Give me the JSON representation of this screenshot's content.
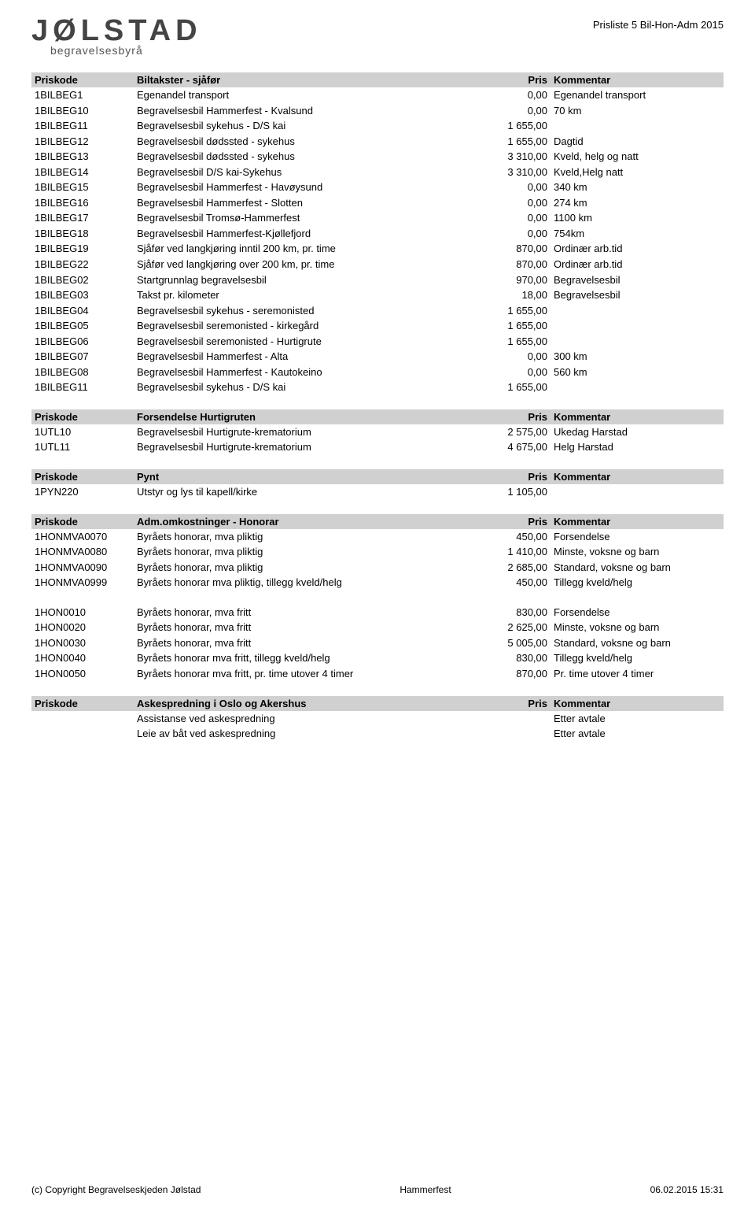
{
  "doc_title": "Prisliste 5 Bil-Hon-Adm 2015",
  "logo": {
    "word": "JØLSTAD",
    "sub": "begravelsesbyrå"
  },
  "columns": {
    "code": "Priskode",
    "price": "Pris",
    "comment": "Kommentar"
  },
  "sections": [
    {
      "title": "Biltakster - sjåfør",
      "rows": [
        {
          "code": "1BILBEG1",
          "desc": "Egenandel transport",
          "price": "0,00",
          "comment": "Egenandel transport"
        },
        {
          "code": "1BILBEG10",
          "desc": "Begravelsesbil Hammerfest - Kvalsund",
          "price": "0,00",
          "comment": "70 km"
        },
        {
          "code": "1BILBEG11",
          "desc": "Begravelsesbil sykehus - D/S kai",
          "price": "1 655,00",
          "comment": ""
        },
        {
          "code": "1BILBEG12",
          "desc": "Begravelsesbil dødssted - sykehus",
          "price": "1 655,00",
          "comment": "Dagtid"
        },
        {
          "code": "1BILBEG13",
          "desc": "Begravelsesbil dødssted - sykehus",
          "price": "3 310,00",
          "comment": "Kveld, helg og natt"
        },
        {
          "code": "1BILBEG14",
          "desc": "Begravelsesbil D/S kai-Sykehus",
          "price": "3 310,00",
          "comment": "Kveld,Helg natt"
        },
        {
          "code": "1BILBEG15",
          "desc": "Begravelsesbil Hammerfest - Havøysund",
          "price": "0,00",
          "comment": "340 km"
        },
        {
          "code": "1BILBEG16",
          "desc": "Begravelsesbil Hammerfest - Slotten",
          "price": "0,00",
          "comment": "274 km"
        },
        {
          "code": "1BILBEG17",
          "desc": "Begravelsesbil Tromsø-Hammerfest",
          "price": "0,00",
          "comment": "1100 km"
        },
        {
          "code": "1BILBEG18",
          "desc": "Begravelsesbil Hammerfest-Kjøllefjord",
          "price": "0,00",
          "comment": "754km"
        },
        {
          "code": "1BILBEG19",
          "desc": "Sjåfør ved langkjøring inntil 200 km, pr. time",
          "price": "870,00",
          "comment": "Ordinær arb.tid"
        },
        {
          "code": "1BILBEG22",
          "desc": "Sjåfør ved langkjøring over 200 km, pr. time",
          "price": "870,00",
          "comment": "Ordinær arb.tid"
        },
        {
          "code": "1BILBEG02",
          "desc": "Startgrunnlag begravelsesbil",
          "price": "970,00",
          "comment": "Begravelsesbil"
        },
        {
          "code": "1BILBEG03",
          "desc": "Takst pr. kilometer",
          "price": "18,00",
          "comment": "Begravelsesbil"
        },
        {
          "code": "1BILBEG04",
          "desc": "Begravelsesbil sykehus - seremonisted",
          "price": "1 655,00",
          "comment": ""
        },
        {
          "code": "1BILBEG05",
          "desc": "Begravelsesbil seremonisted - kirkegård",
          "price": "1 655,00",
          "comment": ""
        },
        {
          "code": "1BILBEG06",
          "desc": "Begravelsesbil seremonisted - Hurtigrute",
          "price": "1 655,00",
          "comment": ""
        },
        {
          "code": "1BILBEG07",
          "desc": "Begravelsesbil Hammerfest - Alta",
          "price": "0,00",
          "comment": "300 km"
        },
        {
          "code": "1BILBEG08",
          "desc": "Begravelsesbil Hammerfest - Kautokeino",
          "price": "0,00",
          "comment": "560 km"
        },
        {
          "code": "1BILBEG11",
          "desc": "Begravelsesbil sykehus - D/S kai",
          "price": "1 655,00",
          "comment": ""
        }
      ]
    },
    {
      "title": "Forsendelse Hurtigruten",
      "rows": [
        {
          "code": "1UTL10",
          "desc": "Begravelsesbil Hurtigrute-krematorium",
          "price": "2 575,00",
          "comment": "Ukedag Harstad"
        },
        {
          "code": "1UTL11",
          "desc": "Begravelsesbil Hurtigrute-krematorium",
          "price": "4 675,00",
          "comment": "Helg Harstad"
        }
      ]
    },
    {
      "title": "Pynt",
      "rows": [
        {
          "code": "1PYN220",
          "desc": "Utstyr og lys til kapell/kirke",
          "price": "1 105,00",
          "comment": ""
        }
      ]
    },
    {
      "title": "Adm.omkostninger - Honorar",
      "rows": [
        {
          "code": "1HONMVA0070",
          "desc": "Byråets honorar, mva pliktig",
          "price": "450,00",
          "comment": "Forsendelse"
        },
        {
          "code": "1HONMVA0080",
          "desc": "Byråets honorar, mva pliktig",
          "price": "1 410,00",
          "comment": "Minste, voksne og barn"
        },
        {
          "code": "1HONMVA0090",
          "desc": "Byråets honorar, mva pliktig",
          "price": "2 685,00",
          "comment": "Standard, voksne og barn"
        },
        {
          "code": "1HONMVA0999",
          "desc": "Byråets honorar mva pliktig, tillegg kveld/helg",
          "price": "450,00",
          "comment": "Tillegg kveld/helg"
        }
      ]
    },
    {
      "rows": [
        {
          "code": "1HON0010",
          "desc": "Byråets honorar, mva fritt",
          "price": "830,00",
          "comment": "Forsendelse"
        },
        {
          "code": "1HON0020",
          "desc": "Byråets honorar, mva fritt",
          "price": "2 625,00",
          "comment": "Minste, voksne og barn"
        },
        {
          "code": "1HON0030",
          "desc": "Byråets honorar, mva fritt",
          "price": "5 005,00",
          "comment": "Standard, voksne og barn"
        },
        {
          "code": "1HON0040",
          "desc": "Byråets honorar mva fritt, tillegg kveld/helg",
          "price": "830,00",
          "comment": "Tillegg kveld/helg"
        },
        {
          "code": "1HON0050",
          "desc": "Byråets honorar mva fritt, pr. time utover 4 timer",
          "price": "870,00",
          "comment": "Pr. time utover 4 timer"
        }
      ]
    },
    {
      "title": "Askespredning i Oslo og Akershus",
      "rows": [
        {
          "code": "",
          "desc": "Assistanse ved askespredning",
          "price": "",
          "comment": "Etter avtale"
        },
        {
          "code": "",
          "desc": "Leie av båt ved askespredning",
          "price": "",
          "comment": "Etter avtale"
        }
      ]
    }
  ],
  "footer": {
    "left": "(c) Copyright Begravelseskjeden Jølstad",
    "center": "Hammerfest",
    "right": "06.02.2015 15:31"
  }
}
